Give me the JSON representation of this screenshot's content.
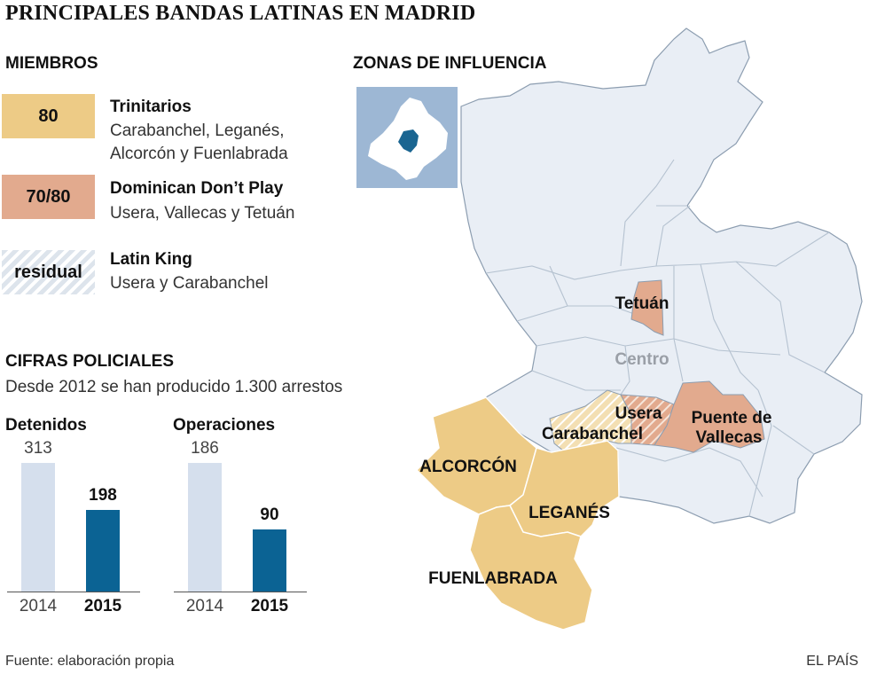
{
  "title": "PRINCIPALES BANDAS LATINAS EN MADRID",
  "members": {
    "heading": "MIEMBROS",
    "items": [
      {
        "count": "80",
        "name": "Trinitarios",
        "areas_line1": "Carabanchel, Leganés,",
        "areas_line2": "Alcorcón y Fuenlabrada",
        "color": "#edcb86"
      },
      {
        "count": "70/80",
        "name": "Dominican Don’t Play",
        "areas_line1": "Usera, Vallecas y Tetuán",
        "color": "#e2aa8e"
      },
      {
        "count": "residual",
        "name": "Latin King",
        "areas_line1": "Usera y Carabanchel",
        "color": "#dde4ec"
      }
    ]
  },
  "police": {
    "heading": "CIFRAS POLICIALES",
    "subtitle": "Desde 2012 se han producido 1.300 arrestos"
  },
  "map": {
    "heading": "ZONAS DE INFLUENCIA",
    "labels": {
      "tetuan": "Tetuán",
      "centro": "Centro",
      "usera": "Usera",
      "carabanchel": "Carabanchel",
      "puente_l1": "Puente de",
      "puente_l2": "Vallecas",
      "alcorcon": "ALCORCÓN",
      "leganes": "LEGANÉS",
      "fuenlabrada": "FUENLABRADA"
    },
    "colors": {
      "city": "#e9eef5",
      "trinitarios": "#edcb86",
      "ddp": "#e2aa8e",
      "inset_bg": "#9db7d4",
      "inset_city": "#1a6591"
    }
  },
  "chart_data": [
    {
      "type": "bar",
      "title": "Detenidos",
      "categories": [
        "2014",
        "2015"
      ],
      "values": [
        313,
        198
      ],
      "ylim": [
        0,
        313
      ]
    },
    {
      "type": "bar",
      "title": "Operaciones",
      "categories": [
        "2014",
        "2015"
      ],
      "values": [
        186,
        90
      ],
      "ylim": [
        0,
        186
      ]
    }
  ],
  "footer": {
    "source": "Fuente: elaboración propia",
    "brand": "EL PAÍS"
  }
}
